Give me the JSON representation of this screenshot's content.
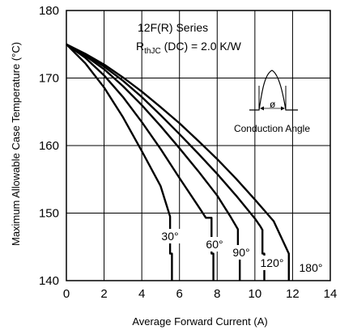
{
  "chart_data": {
    "type": "line",
    "xlabel": "Average Forward Current (A)",
    "ylabel": "Maximum Allowable Case Temperature (°C)",
    "xlim": [
      0,
      14
    ],
    "ylim": [
      140,
      180
    ],
    "xticks": [
      0,
      2,
      4,
      6,
      8,
      10,
      12,
      14
    ],
    "yticks": [
      140,
      150,
      160,
      170,
      180
    ],
    "grid": true,
    "annotation": {
      "series_label": "12F(R) Series",
      "r_main": "R",
      "r_sub": "thJC",
      "r_rest": " (DC) = 2.0 K/W",
      "inset_label": "Conduction Angle",
      "inset_symbol": "ø"
    },
    "series": [
      {
        "name": "30°",
        "x": [
          0,
          1,
          2,
          3,
          4,
          5,
          5.5,
          5.5,
          5.6,
          5.6
        ],
        "y": [
          175,
          172.2,
          168.6,
          164.2,
          159.2,
          154.0,
          149.5,
          144,
          144,
          140
        ]
      },
      {
        "name": "60°",
        "x": [
          0,
          1,
          2,
          3,
          4,
          5,
          6,
          7,
          7.4,
          7.7,
          7.7,
          7.8,
          7.8
        ],
        "y": [
          175,
          173.0,
          170.4,
          167.2,
          163.5,
          159.5,
          155.2,
          151.0,
          149.3,
          149.3,
          144,
          144,
          140
        ]
      },
      {
        "name": "90°",
        "x": [
          0,
          1,
          2,
          3,
          4,
          5,
          6,
          7,
          8,
          8.7,
          9.1,
          9.1,
          9.2,
          9.2
        ],
        "y": [
          175,
          173.3,
          171.3,
          168.8,
          166.0,
          162.9,
          159.6,
          156.2,
          152.6,
          149.5,
          147.6,
          144,
          144,
          140
        ]
      },
      {
        "name": "120°",
        "x": [
          0,
          1,
          2,
          3,
          4,
          5,
          6,
          7,
          8,
          9,
          10,
          10.3,
          10.4,
          10.4,
          10.5,
          10.5
        ],
        "y": [
          175,
          173.5,
          171.7,
          169.6,
          167.2,
          164.5,
          161.7,
          158.8,
          155.8,
          152.6,
          149.2,
          148.0,
          147.5,
          144,
          144,
          140
        ]
      },
      {
        "name": "180°",
        "x": [
          0,
          1,
          2,
          3,
          4,
          5,
          6,
          7,
          8,
          9,
          10,
          11,
          11.8,
          11.8
        ],
        "y": [
          175,
          173.6,
          172.0,
          170.1,
          168.0,
          165.7,
          163.3,
          160.7,
          158.0,
          155.1,
          152.0,
          148.8,
          144,
          140
        ]
      }
    ]
  }
}
